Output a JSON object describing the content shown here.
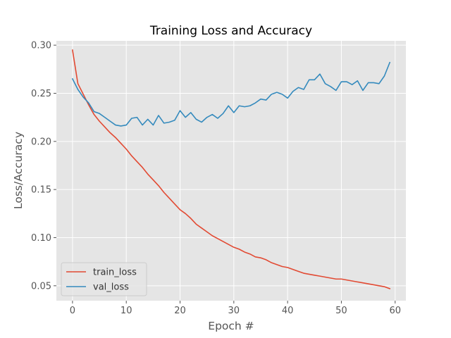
{
  "chart_data": {
    "type": "line",
    "title": "Training Loss and Accuracy",
    "xlabel": "Epoch #",
    "ylabel": "Loss/Accuracy",
    "xlim": [
      -3,
      62
    ],
    "ylim": [
      0.0345,
      0.3045
    ],
    "xticks": [
      0,
      10,
      20,
      30,
      40,
      50,
      60
    ],
    "yticks": [
      0.05,
      0.1,
      0.15,
      0.2,
      0.25,
      0.3
    ],
    "ytick_labels": [
      "0.05",
      "0.10",
      "0.15",
      "0.20",
      "0.25",
      "0.30"
    ],
    "grid": true,
    "legend_position": "lower-left",
    "x": [
      0,
      1,
      2,
      3,
      4,
      5,
      6,
      7,
      8,
      9,
      10,
      11,
      12,
      13,
      14,
      15,
      16,
      17,
      18,
      19,
      20,
      21,
      22,
      23,
      24,
      25,
      26,
      27,
      28,
      29,
      30,
      31,
      32,
      33,
      34,
      35,
      36,
      37,
      38,
      39,
      40,
      41,
      42,
      43,
      44,
      45,
      46,
      47,
      48,
      49,
      50,
      51,
      52,
      53,
      54,
      55,
      56,
      57,
      58,
      59
    ],
    "series": [
      {
        "name": "train_loss",
        "color": "#E24A33",
        "values": [
          0.295,
          0.26,
          0.249,
          0.238,
          0.228,
          0.221,
          0.215,
          0.209,
          0.204,
          0.198,
          0.192,
          0.185,
          0.179,
          0.173,
          0.166,
          0.16,
          0.154,
          0.147,
          0.141,
          0.135,
          0.129,
          0.125,
          0.12,
          0.114,
          0.11,
          0.106,
          0.102,
          0.099,
          0.096,
          0.093,
          0.09,
          0.088,
          0.085,
          0.083,
          0.08,
          0.079,
          0.077,
          0.074,
          0.072,
          0.07,
          0.069,
          0.067,
          0.065,
          0.063,
          0.062,
          0.061,
          0.06,
          0.059,
          0.058,
          0.057,
          0.057,
          0.056,
          0.055,
          0.054,
          0.053,
          0.052,
          0.051,
          0.05,
          0.049,
          0.047
        ]
      },
      {
        "name": "val_loss",
        "color": "#348ABD",
        "values": [
          0.265,
          0.254,
          0.246,
          0.24,
          0.231,
          0.229,
          0.225,
          0.221,
          0.217,
          0.216,
          0.217,
          0.224,
          0.225,
          0.217,
          0.223,
          0.217,
          0.227,
          0.219,
          0.22,
          0.222,
          0.232,
          0.225,
          0.23,
          0.223,
          0.22,
          0.225,
          0.228,
          0.224,
          0.229,
          0.237,
          0.23,
          0.237,
          0.236,
          0.237,
          0.24,
          0.244,
          0.243,
          0.249,
          0.251,
          0.249,
          0.245,
          0.252,
          0.256,
          0.254,
          0.264,
          0.264,
          0.27,
          0.26,
          0.257,
          0.253,
          0.262,
          0.262,
          0.259,
          0.263,
          0.253,
          0.261,
          0.261,
          0.26,
          0.268,
          0.282
        ]
      }
    ]
  }
}
